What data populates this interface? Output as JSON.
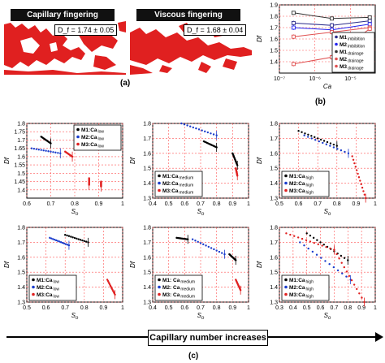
{
  "panel_a": {
    "left": {
      "banner": "Capillary fingering",
      "df_text": "D_f = 1.74 ± 0.05"
    },
    "right": {
      "banner": "Viscous fingering",
      "df_text": "D_f = 1.68 ± 0.04"
    },
    "label": "(a)",
    "fluid_color": "#e02020"
  },
  "panel_b_label": "(b)",
  "panel_c_label": "(c)",
  "arrow_text": "Capillary number increases",
  "chart_data": [
    {
      "id": "b",
      "type": "line",
      "xscale": "log",
      "xlim": [
        1e-07,
        5e-05
      ],
      "ylim": [
        1.3,
        1.9
      ],
      "xticks": [
        1e-07,
        1e-06,
        1e-05
      ],
      "xtick_labels": [
        "10⁻⁷",
        "10⁻⁶",
        "10⁻⁵"
      ],
      "yticks": [
        1.4,
        1.5,
        1.6,
        1.7,
        1.8,
        1.9
      ],
      "xlabel": "Ca",
      "ylabel": "Df",
      "grid": true,
      "legend_position": "right",
      "series": [
        {
          "name": "M1 imbibition",
          "legend": "M1",
          "legend_sub": "imbibition",
          "color": "#2a2a8a",
          "marker": "square",
          "x": [
            2.5e-07,
            3e-06,
            3.5e-05
          ],
          "y": [
            1.74,
            1.72,
            1.76
          ],
          "err": [
            0.02,
            0.02,
            0.02
          ]
        },
        {
          "name": "M2 imbibition",
          "legend": "M2",
          "legend_sub": "imbibition",
          "color": "#2222ee",
          "marker": "diamond",
          "x": [
            2.5e-07,
            3e-06,
            3.5e-05
          ],
          "y": [
            1.7,
            1.68,
            1.73
          ],
          "err": [
            0.02,
            0.02,
            0.02
          ]
        },
        {
          "name": "M1 drainage",
          "legend": "M1",
          "legend_sub": "drainage",
          "color": "#333333",
          "marker": "square",
          "x": [
            2.5e-07,
            3e-06,
            3.5e-05
          ],
          "y": [
            1.83,
            1.78,
            1.79
          ],
          "err": [
            0.01,
            0.01,
            0.01
          ]
        },
        {
          "name": "M2 drainage",
          "legend": "M2",
          "legend_sub": "drainage",
          "color": "#e05050",
          "marker": "circle",
          "x": [
            2.5e-07,
            3e-06,
            3.5e-05
          ],
          "y": [
            1.62,
            1.66,
            1.7
          ],
          "err": [
            0.02,
            0.02,
            0.02
          ]
        },
        {
          "name": "M3 drainage",
          "legend": "M3",
          "legend_sub": "drainage",
          "color": "#e05050",
          "marker": "triangle",
          "x": [
            2.5e-07,
            3e-06,
            3.5e-05
          ],
          "y": [
            1.38,
            1.44,
            1.69
          ],
          "err": [
            0.02,
            0.02,
            0.02
          ]
        }
      ]
    },
    {
      "id": "c1",
      "type": "scatter",
      "xlim": [
        0.6,
        1.0
      ],
      "ylim": [
        1.35,
        1.8
      ],
      "xticks": [
        0.6,
        0.7,
        0.8,
        0.9,
        1.0
      ],
      "xtick_labels": [
        "0.6",
        "0.7",
        "0.8",
        "0.9",
        "1"
      ],
      "yticks": [
        1.4,
        1.45,
        1.5,
        1.55,
        1.6,
        1.65,
        1.7,
        1.75,
        1.8
      ],
      "xlabel": "S",
      "xlabel_sub": "o",
      "ylabel": "Df",
      "legend_position": "top-right",
      "series": [
        {
          "name": "M1:Ca low",
          "legend": "M1:Ca",
          "legend_sub": "low",
          "color": "#000000",
          "segments": [
            [
              0.66,
              1.72,
              0.7,
              1.68
            ]
          ]
        },
        {
          "name": "M2:Ca low",
          "legend": "M2:Ca",
          "legend_sub": "low",
          "color": "#1a3ccc",
          "segments": [
            [
              0.62,
              1.65,
              0.74,
              1.62
            ]
          ]
        },
        {
          "name": "M3:Ca low",
          "legend": "M3:Ca",
          "legend_sub": "low",
          "color": "#e02020",
          "segments": [
            [
              0.76,
              1.63,
              0.79,
              1.6
            ],
            [
              0.86,
              1.47,
              0.86,
              1.43
            ],
            [
              0.91,
              1.45,
              0.91,
              1.42
            ]
          ]
        }
      ]
    },
    {
      "id": "c2",
      "type": "scatter",
      "xlim": [
        0.4,
        1.0
      ],
      "ylim": [
        1.3,
        1.8
      ],
      "xticks": [
        0.4,
        0.5,
        0.6,
        0.7,
        0.8,
        0.9,
        1.0
      ],
      "xtick_labels": [
        "0.4",
        "0.5",
        "0.6",
        "0.7",
        "0.8",
        "0.9",
        "1"
      ],
      "yticks": [
        1.3,
        1.4,
        1.5,
        1.6,
        1.7,
        1.8
      ],
      "xlabel": "S",
      "xlabel_sub": "o",
      "ylabel": "Df",
      "legend_position": "bottom-left",
      "series": [
        {
          "name": "M1:Ca medium",
          "legend": "M1:Ca",
          "legend_sub": "medium",
          "color": "#000000",
          "segments": [
            [
              0.72,
              1.68,
              0.8,
              1.64
            ],
            [
              0.9,
              1.6,
              0.93,
              1.52
            ]
          ]
        },
        {
          "name": "M2:Ca medium",
          "legend": "M2:Ca",
          "legend_sub": "medium",
          "color": "#1a3ccc",
          "segments": [
            [
              0.58,
              1.8,
              0.8,
              1.72
            ]
          ]
        },
        {
          "name": "M3:Ca medium",
          "legend": "M3:Ca",
          "legend_sub": "medium",
          "color": "#e02020",
          "segments": [
            [
              0.92,
              1.5,
              0.93,
              1.45
            ]
          ]
        }
      ]
    },
    {
      "id": "c3",
      "type": "scatter",
      "xlim": [
        0.5,
        1.0
      ],
      "ylim": [
        1.3,
        1.8
      ],
      "xticks": [
        0.5,
        0.6,
        0.7,
        0.8,
        0.9,
        1.0
      ],
      "xtick_labels": [
        "0.5",
        "0.6",
        "0.7",
        "0.8",
        "0.9",
        "1"
      ],
      "yticks": [
        1.3,
        1.4,
        1.5,
        1.6,
        1.7,
        1.8
      ],
      "xlabel": "S",
      "xlabel_sub": "o",
      "ylabel": "Df",
      "legend_position": "bottom-left",
      "series": [
        {
          "name": "M1:Ca high",
          "legend": "M1:Ca",
          "legend_sub": "high",
          "color": "#000000",
          "segments": [
            [
              0.6,
              1.75,
              0.8,
              1.65
            ]
          ]
        },
        {
          "name": "M2:Ca high",
          "legend": "M2:Ca",
          "legend_sub": "high",
          "color": "#1a3ccc",
          "segments": [
            [
              0.63,
              1.72,
              0.86,
              1.6
            ]
          ]
        },
        {
          "name": "M3:Ca high",
          "legend": "M3:Ca",
          "legend_sub": "high",
          "color": "#e02020",
          "segments": [
            [
              0.88,
              1.58,
              0.95,
              1.3
            ]
          ]
        }
      ]
    },
    {
      "id": "c4",
      "type": "scatter",
      "xlim": [
        0.5,
        1.0
      ],
      "ylim": [
        1.3,
        1.8
      ],
      "xticks": [
        0.5,
        0.6,
        0.7,
        0.8,
        0.9,
        1.0
      ],
      "xtick_labels": [
        "0.5",
        "0.6",
        "0.7",
        "0.8",
        "0.9",
        "1"
      ],
      "yticks": [
        1.3,
        1.4,
        1.5,
        1.6,
        1.7,
        1.8
      ],
      "xlabel": "S",
      "xlabel_sub": "o",
      "ylabel": "Df",
      "legend_position": "bottom-left",
      "series": [
        {
          "name": "M1:Ca low",
          "legend": "M1:Ca",
          "legend_sub": "low",
          "color": "#000000",
          "segments": [
            [
              0.7,
              1.75,
              0.82,
              1.7
            ]
          ]
        },
        {
          "name": "M2:Ca low",
          "legend": "M2:Ca",
          "legend_sub": "low",
          "color": "#1a3ccc",
          "segments": [
            [
              0.62,
              1.73,
              0.72,
              1.68
            ]
          ]
        },
        {
          "name": "M3:Ca low",
          "legend": "M3:Ca",
          "legend_sub": "low",
          "color": "#e02020",
          "segments": [
            [
              0.92,
              1.45,
              0.96,
              1.35
            ]
          ]
        }
      ]
    },
    {
      "id": "c5",
      "type": "scatter",
      "xlim": [
        0.4,
        1.0
      ],
      "ylim": [
        1.3,
        1.8
      ],
      "xticks": [
        0.4,
        0.5,
        0.6,
        0.7,
        0.8,
        0.9,
        1.0
      ],
      "xtick_labels": [
        "0.4",
        "0.5",
        "0.6",
        "0.7",
        "0.8",
        "0.9",
        "1"
      ],
      "yticks": [
        1.3,
        1.4,
        1.5,
        1.6,
        1.7,
        1.8
      ],
      "xlabel": "S",
      "xlabel_sub": "o",
      "ylabel": "Df",
      "legend_position": "bottom-left",
      "series": [
        {
          "name": "M1: Ca medium",
          "legend": "M1: Ca",
          "legend_sub": "medium",
          "color": "#000000",
          "segments": [
            [
              0.55,
              1.73,
              0.62,
              1.72
            ],
            [
              0.88,
              1.62,
              0.92,
              1.58
            ]
          ]
        },
        {
          "name": "M2: Ca medium",
          "legend": "M2: Ca",
          "legend_sub": "medium",
          "color": "#1a3ccc",
          "segments": [
            [
              0.65,
              1.72,
              0.85,
              1.62
            ]
          ]
        },
        {
          "name": "M3: Ca medium",
          "legend": "M3: Ca",
          "legend_sub": "medium",
          "color": "#e02020",
          "segments": [
            [
              0.92,
              1.45,
              0.95,
              1.38
            ]
          ]
        }
      ]
    },
    {
      "id": "c6",
      "type": "scatter",
      "xlim": [
        0.3,
        1.0
      ],
      "ylim": [
        1.3,
        1.8
      ],
      "xticks": [
        0.3,
        0.4,
        0.5,
        0.6,
        0.7,
        0.8,
        0.9,
        1.0
      ],
      "xtick_labels": [
        "0.3",
        "0.4",
        "0.5",
        "0.6",
        "0.7",
        "0.8",
        "0.9",
        "1"
      ],
      "yticks": [
        1.3,
        1.4,
        1.5,
        1.6,
        1.7,
        1.8
      ],
      "xlabel": "S",
      "xlabel_sub": "o",
      "ylabel": "Df",
      "legend_position": "bottom-left",
      "series": [
        {
          "name": "M1:Ca high",
          "legend": "M1:Ca",
          "legend_sub": "high",
          "color": "#000000",
          "segments": [
            [
              0.5,
              1.76,
              0.8,
              1.58
            ]
          ]
        },
        {
          "name": "M2:Ca high",
          "legend": "M2:Ca",
          "legend_sub": "high",
          "color": "#1a3ccc",
          "segments": [
            [
              0.45,
              1.7,
              0.82,
              1.45
            ]
          ]
        },
        {
          "name": "M3:Ca high",
          "legend": "M3:Ca",
          "legend_sub": "high",
          "color": "#e02020",
          "segments": [
            [
              0.35,
              1.76,
              0.7,
              1.65
            ],
            [
              0.7,
              1.65,
              0.92,
              1.3
            ]
          ]
        }
      ]
    }
  ]
}
